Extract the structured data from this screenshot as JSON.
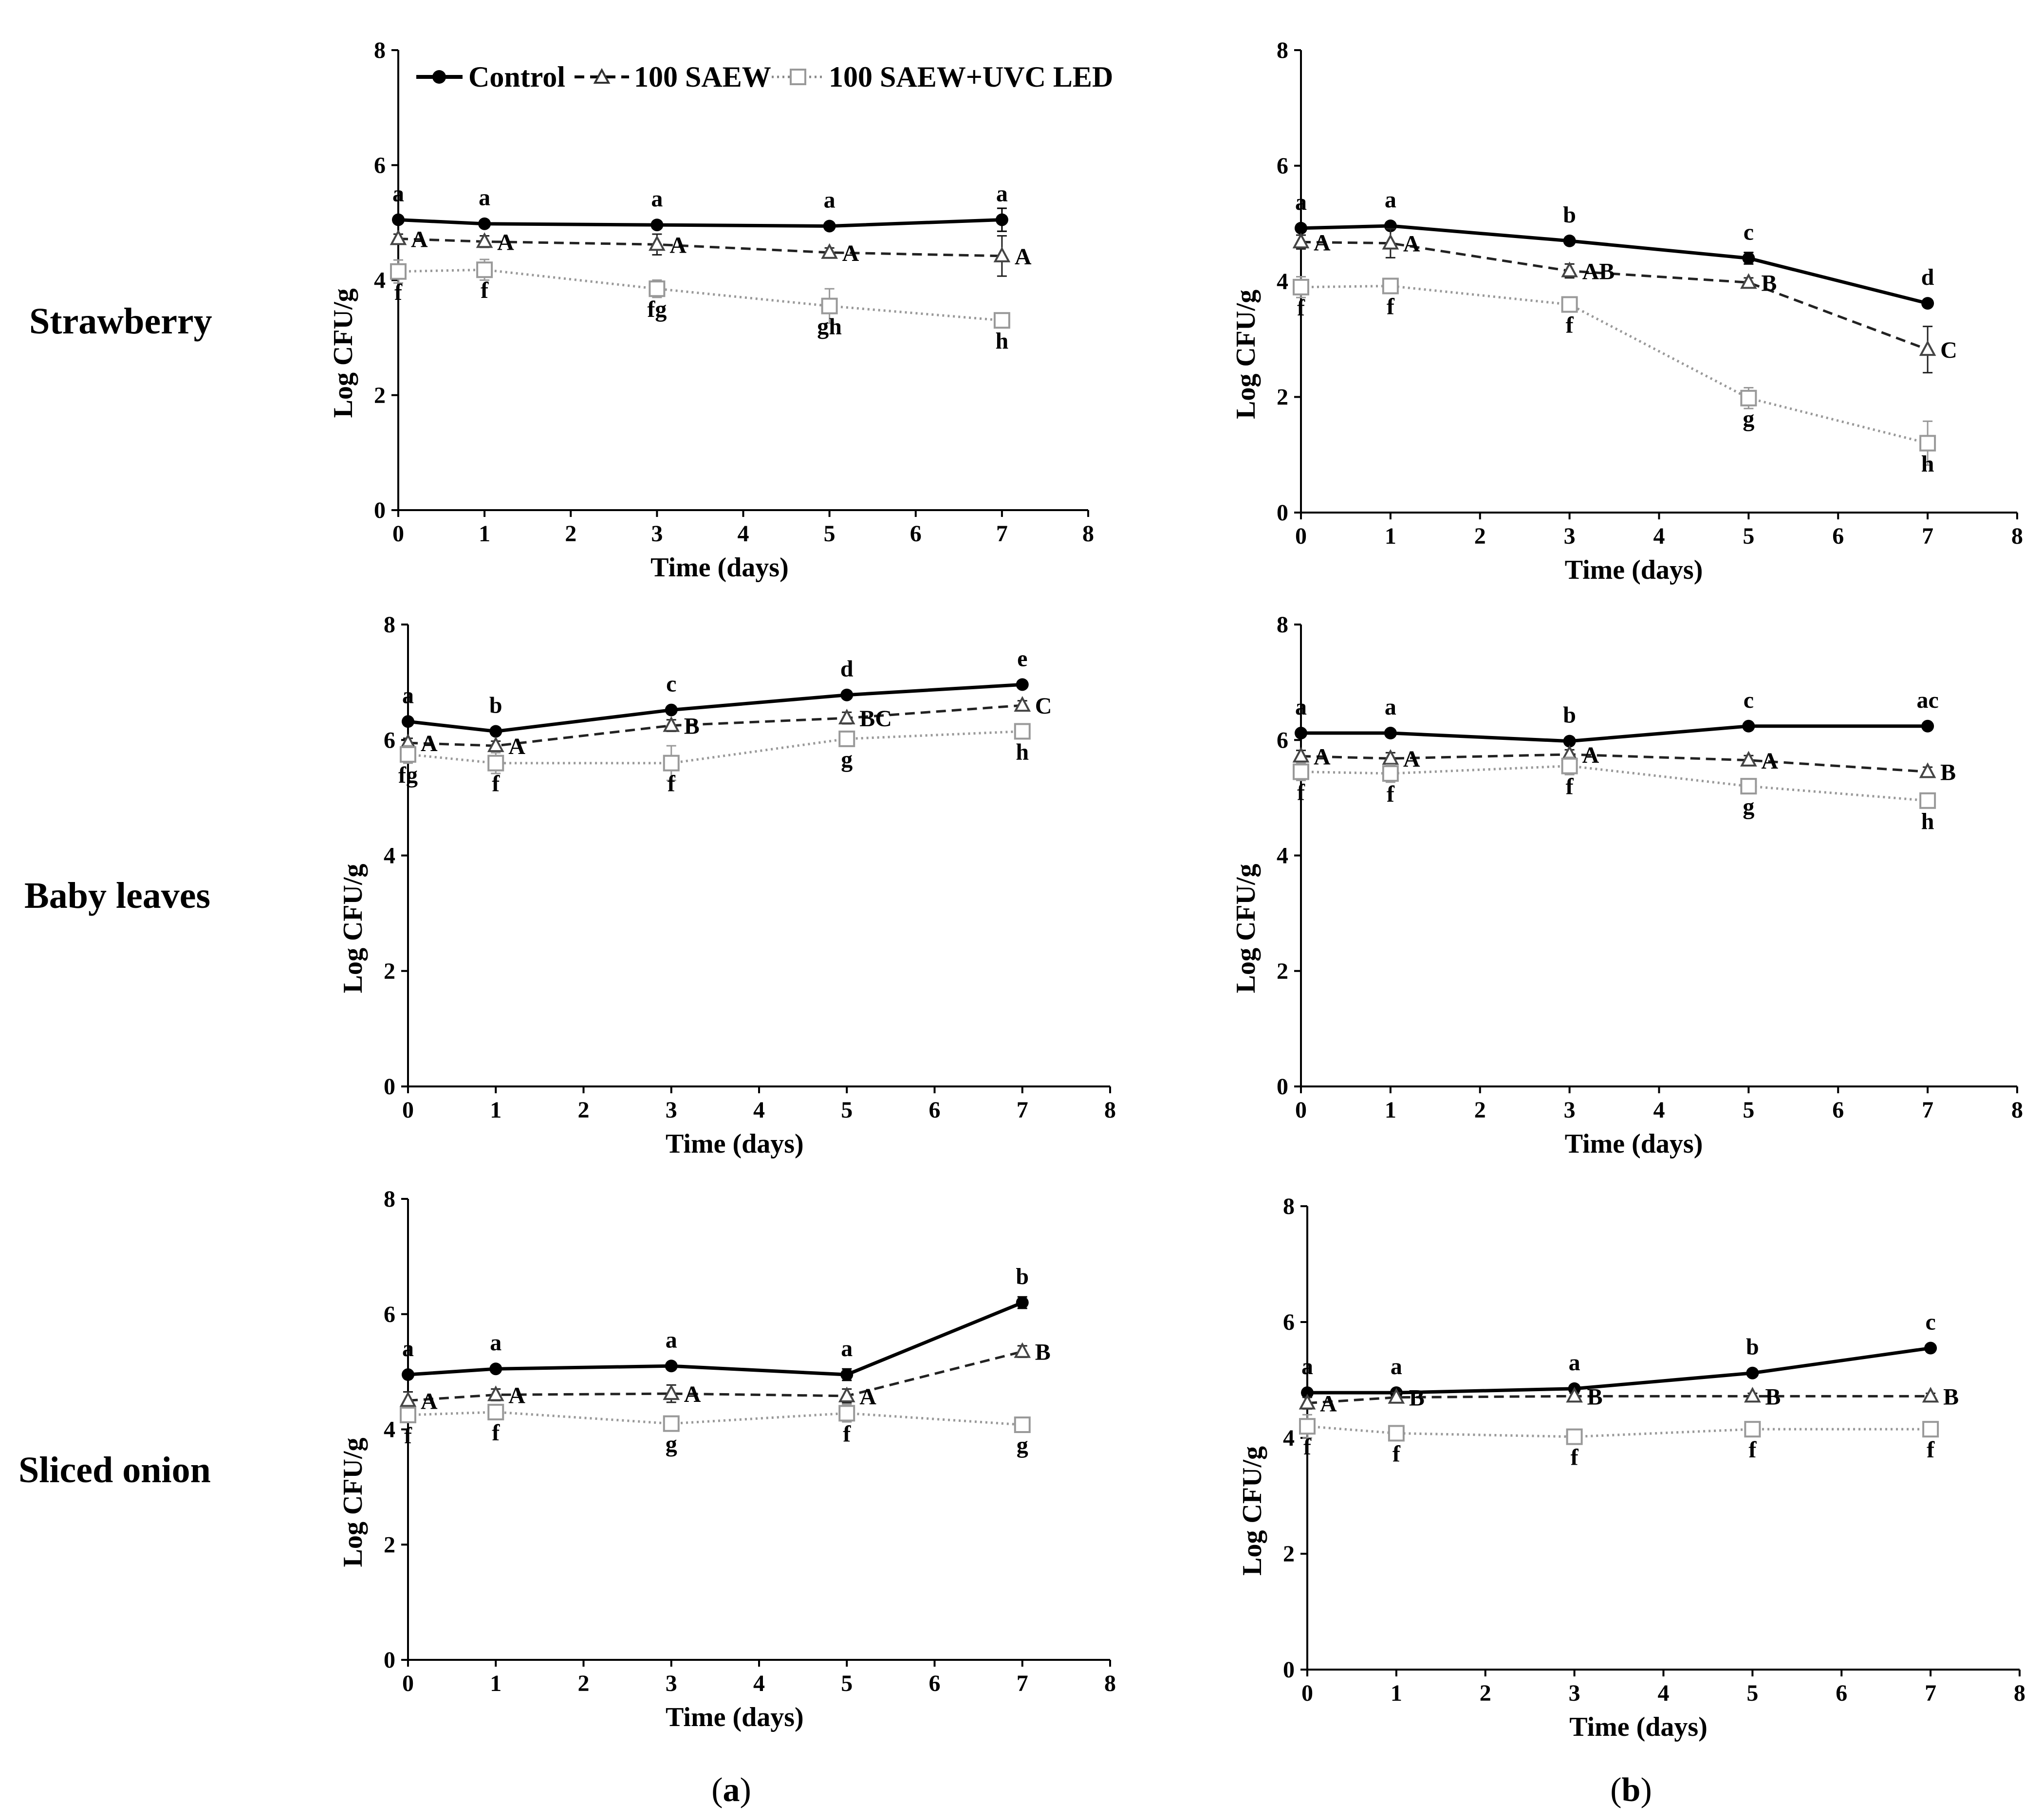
{
  "figure": {
    "row_labels": [
      "Strawberry",
      "Baby leaves",
      "Sliced onion"
    ],
    "column_labels": [
      {
        "open": "(",
        "letter": "a",
        "close": ")"
      },
      {
        "open": "(",
        "letter": "b",
        "close": ")"
      }
    ]
  },
  "legend": {
    "entries": [
      "Control",
      "100 SAEW",
      "100 SAEW+UVC LED"
    ]
  },
  "styles": {
    "control_color": "#000000",
    "saew_color": "#222222",
    "uvc_color": "#999999"
  },
  "chart_data": [
    {
      "type": "line",
      "panel": "a-1",
      "xlabel": "Time (days)",
      "ylabel": "Log CFU/g",
      "xlim": [
        0,
        8
      ],
      "ylim": [
        0,
        8
      ],
      "xticks": [
        "0",
        "1",
        "2",
        "3",
        "4",
        "5",
        "6",
        "7",
        "8"
      ],
      "yticks": [
        "0",
        "2",
        "4",
        "6",
        "8"
      ],
      "x": [
        0,
        1,
        3,
        5,
        7
      ],
      "series": [
        {
          "name": "Control",
          "values": [
            5.05,
            4.98,
            4.96,
            4.94,
            5.05
          ],
          "errors": [
            0.05,
            0.05,
            0.05,
            0.05,
            0.2
          ],
          "labels": [
            "a",
            "a",
            "a",
            "a",
            "a"
          ]
        },
        {
          "name": "100 SAEW",
          "values": [
            4.72,
            4.67,
            4.62,
            4.48,
            4.42
          ],
          "errors": [
            0.08,
            0.1,
            0.18,
            0.08,
            0.35
          ],
          "labels": [
            "A",
            "A",
            "A",
            "A",
            "A"
          ]
        },
        {
          "name": "100 SAEW+UVC LED",
          "values": [
            4.15,
            4.18,
            3.85,
            3.55,
            3.3
          ],
          "errors": [
            0.2,
            0.18,
            0.15,
            0.3,
            0.1
          ],
          "labels": [
            "f",
            "f",
            "fg",
            "gh",
            "h"
          ]
        }
      ]
    },
    {
      "type": "line",
      "panel": "b-1",
      "xlabel": "Time (days)",
      "ylabel": "Log CFU/g",
      "xlim": [
        0,
        8
      ],
      "ylim": [
        0,
        8
      ],
      "xticks": [
        "0",
        "1",
        "2",
        "3",
        "4",
        "5",
        "6",
        "7",
        "8"
      ],
      "yticks": [
        "0",
        "2",
        "4",
        "6",
        "8"
      ],
      "x": [
        0,
        1,
        3,
        5,
        7
      ],
      "series": [
        {
          "name": "Control",
          "values": [
            4.92,
            4.96,
            4.7,
            4.4,
            3.62
          ],
          "errors": [
            0.05,
            0.05,
            0.05,
            0.1,
            0.05
          ],
          "labels": [
            "a",
            "a",
            "b",
            "c",
            "d"
          ]
        },
        {
          "name": "100 SAEW",
          "values": [
            4.68,
            4.66,
            4.18,
            3.98,
            2.82
          ],
          "errors": [
            0.12,
            0.25,
            0.12,
            0.08,
            0.4
          ],
          "labels": [
            "A",
            "A",
            "AB",
            "B",
            "C"
          ]
        },
        {
          "name": "100 SAEW+UVC LED",
          "values": [
            3.9,
            3.92,
            3.6,
            1.98,
            1.2
          ],
          "errors": [
            0.18,
            0.12,
            0.12,
            0.18,
            0.38
          ],
          "labels": [
            "f",
            "f",
            "f",
            "g",
            "h"
          ]
        }
      ]
    },
    {
      "type": "line",
      "panel": "a-2",
      "xlabel": "Time (days)",
      "ylabel": "Log CFU/g",
      "xlim": [
        0,
        8
      ],
      "ylim": [
        0,
        8
      ],
      "xticks": [
        "0",
        "1",
        "2",
        "3",
        "4",
        "5",
        "6",
        "7",
        "8"
      ],
      "yticks": [
        "0",
        "2",
        "4",
        "6",
        "8"
      ],
      "x": [
        0,
        1,
        3,
        5,
        7
      ],
      "series": [
        {
          "name": "Control",
          "values": [
            6.32,
            6.15,
            6.52,
            6.78,
            6.96
          ],
          "errors": [
            0.05,
            0.05,
            0.05,
            0.05,
            0.05
          ],
          "labels": [
            "a",
            "b",
            "c",
            "d",
            "e"
          ]
        },
        {
          "name": "100 SAEW",
          "values": [
            5.95,
            5.9,
            6.25,
            6.38,
            6.6
          ],
          "errors": [
            0.08,
            0.08,
            0.1,
            0.1,
            0.08
          ],
          "labels": [
            "A",
            "A",
            "B",
            "BC",
            "C"
          ]
        },
        {
          "name": "100 SAEW+UVC LED",
          "values": [
            5.75,
            5.6,
            5.6,
            6.02,
            6.15
          ],
          "errors": [
            0.15,
            0.18,
            0.3,
            0.12,
            0.1
          ],
          "labels": [
            "fg",
            "f",
            "f",
            "g",
            "h"
          ]
        }
      ]
    },
    {
      "type": "line",
      "panel": "b-2",
      "xlabel": "Time (days)",
      "ylabel": "Log CFU/g",
      "xlim": [
        0,
        8
      ],
      "ylim": [
        0,
        8
      ],
      "xticks": [
        "0",
        "1",
        "2",
        "3",
        "4",
        "5",
        "6",
        "7",
        "8"
      ],
      "yticks": [
        "0",
        "2",
        "4",
        "6",
        "8"
      ],
      "x": [
        0,
        1,
        3,
        5,
        7
      ],
      "series": [
        {
          "name": "Control",
          "values": [
            6.12,
            6.12,
            5.98,
            6.24,
            6.24
          ],
          "errors": [
            0.05,
            0.05,
            0.05,
            0.05,
            0.05
          ],
          "labels": [
            "a",
            "a",
            "b",
            "c",
            "ac"
          ]
        },
        {
          "name": "100 SAEW",
          "values": [
            5.72,
            5.68,
            5.75,
            5.65,
            5.45
          ],
          "errors": [
            0.1,
            0.1,
            0.08,
            0.08,
            0.08
          ],
          "labels": [
            "A",
            "A",
            "A",
            "A",
            "B"
          ]
        },
        {
          "name": "100 SAEW+UVC LED",
          "values": [
            5.45,
            5.42,
            5.55,
            5.2,
            4.95
          ],
          "errors": [
            0.15,
            0.15,
            0.15,
            0.12,
            0.12
          ],
          "labels": [
            "f",
            "f",
            "f",
            "g",
            "h"
          ]
        }
      ]
    },
    {
      "type": "line",
      "panel": "a-3",
      "xlabel": "Time (days)",
      "ylabel": "Log CFU/g",
      "xlim": [
        0,
        8
      ],
      "ylim": [
        0,
        8
      ],
      "xticks": [
        "0",
        "1",
        "2",
        "3",
        "4",
        "5",
        "6",
        "7",
        "8"
      ],
      "yticks": [
        "0",
        "2",
        "4",
        "6",
        "8"
      ],
      "x": [
        0,
        1,
        3,
        5,
        7
      ],
      "series": [
        {
          "name": "Control",
          "values": [
            4.95,
            5.05,
            5.1,
            4.95,
            6.2
          ],
          "errors": [
            0.05,
            0.05,
            0.05,
            0.1,
            0.1
          ],
          "labels": [
            "a",
            "a",
            "a",
            "a",
            "b"
          ]
        },
        {
          "name": "100 SAEW",
          "values": [
            4.5,
            4.6,
            4.62,
            4.58,
            5.35
          ],
          "errors": [
            0.15,
            0.1,
            0.15,
            0.12,
            0.1
          ],
          "labels": [
            "A",
            "A",
            "A",
            "A",
            "B"
          ]
        },
        {
          "name": "100 SAEW+UVC LED",
          "values": [
            4.25,
            4.3,
            4.1,
            4.28,
            4.08
          ],
          "errors": [
            0.1,
            0.1,
            0.1,
            0.15,
            0.1
          ],
          "labels": [
            "f",
            "f",
            "g",
            "f",
            "g"
          ]
        }
      ]
    },
    {
      "type": "line",
      "panel": "b-3",
      "xlabel": "Time (days)",
      "ylabel": "Log CFU/g",
      "xlim": [
        0,
        8
      ],
      "ylim": [
        0,
        8
      ],
      "xticks": [
        "0",
        "1",
        "2",
        "3",
        "4",
        "5",
        "6",
        "7",
        "8"
      ],
      "yticks": [
        "0",
        "2",
        "4",
        "6",
        "8"
      ],
      "x": [
        0,
        1,
        3,
        5,
        7
      ],
      "series": [
        {
          "name": "Control",
          "values": [
            4.78,
            4.78,
            4.85,
            5.12,
            5.55
          ],
          "errors": [
            0.05,
            0.05,
            0.05,
            0.05,
            0.05
          ],
          "labels": [
            "a",
            "a",
            "a",
            "b",
            "c"
          ]
        },
        {
          "name": "100 SAEW",
          "values": [
            4.6,
            4.7,
            4.72,
            4.72,
            4.72
          ],
          "errors": [
            0.1,
            0.08,
            0.05,
            0.05,
            0.05
          ],
          "labels": [
            "A",
            "B",
            "B",
            "B",
            "B"
          ]
        },
        {
          "name": "100 SAEW+UVC LED",
          "values": [
            4.2,
            4.08,
            4.02,
            4.15,
            4.15
          ],
          "errors": [
            0.2,
            0.12,
            0.1,
            0.1,
            0.1
          ],
          "labels": [
            "f",
            "f",
            "f",
            "f",
            "f"
          ]
        }
      ]
    }
  ]
}
